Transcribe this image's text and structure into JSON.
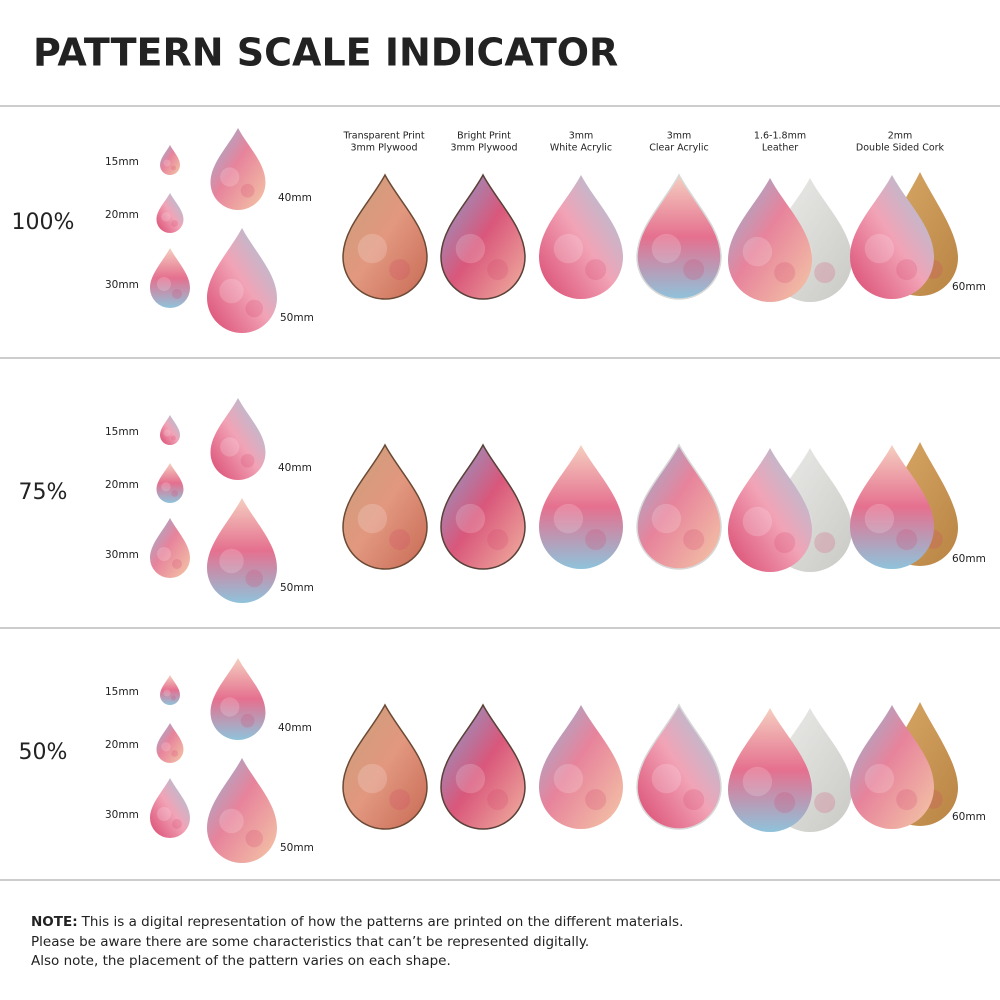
{
  "header": {
    "title": "PATTERN SCALE INDICATOR"
  },
  "materials": [
    {
      "line1": "Transparent Print",
      "line2": "3mm Plywood"
    },
    {
      "line1": "Bright Print",
      "line2": "3mm Plywood"
    },
    {
      "line1": "3mm",
      "line2": "White Acrylic"
    },
    {
      "line1": "3mm",
      "line2": "Clear Acrylic"
    },
    {
      "line1": "1.6-1.8mm",
      "line2": "Leather"
    },
    {
      "line1": "2mm",
      "line2": "Double Sided Cork"
    }
  ],
  "rows": [
    {
      "scale": "100%",
      "sizes": [
        "15mm",
        "20mm",
        "30mm",
        "40mm",
        "50mm"
      ],
      "material_size": "60mm"
    },
    {
      "scale": "75%",
      "sizes": [
        "15mm",
        "20mm",
        "30mm",
        "40mm",
        "50mm"
      ],
      "material_size": "60mm"
    },
    {
      "scale": "50%",
      "sizes": [
        "15mm",
        "20mm",
        "30mm",
        "40mm",
        "50mm"
      ],
      "material_size": "60mm"
    }
  ],
  "note": {
    "label": "NOTE:",
    "lines": [
      "This is a digital representation of how the patterns are printed on the different materials.",
      "Please be aware there are some characteristics that can’t be represented digitally.",
      "Also note, the placement of the pattern varies on each shape."
    ]
  }
}
